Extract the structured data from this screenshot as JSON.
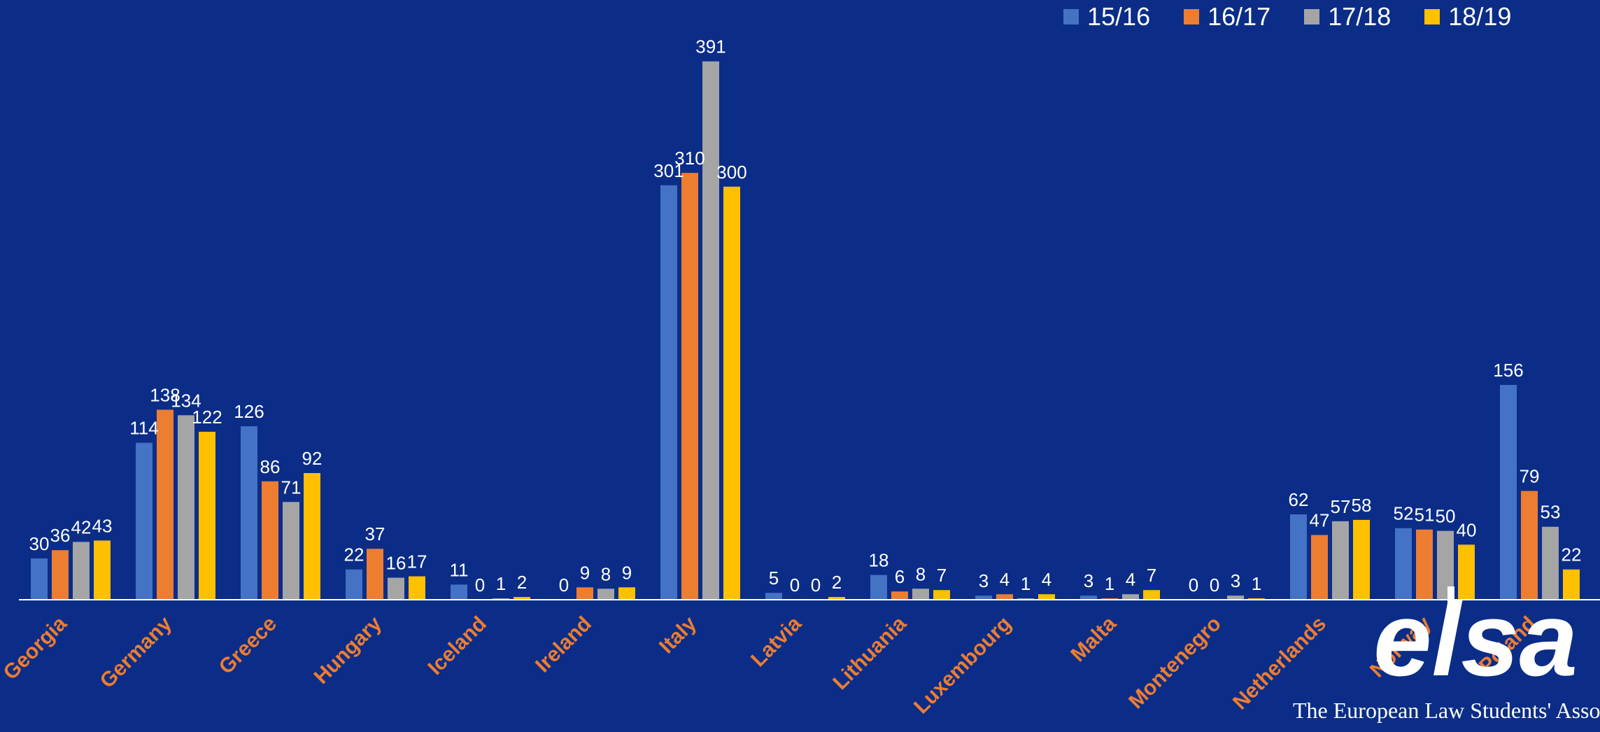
{
  "chart_data": {
    "type": "bar",
    "categories": [
      "Georgia",
      "Germany",
      "Greece",
      "Hungary",
      "Iceland",
      "Ireland",
      "Italy",
      "Latvia",
      "Lithuania",
      "Luxembourg",
      "Malta",
      "Montenegro",
      "Netherlands",
      "Norway",
      "Poland"
    ],
    "series": [
      {
        "name": "15/16",
        "color": "#4472c4",
        "values": [
          30,
          114,
          126,
          22,
          11,
          0,
          301,
          5,
          18,
          3,
          3,
          0,
          62,
          52,
          156
        ]
      },
      {
        "name": "16/17",
        "color": "#ed7d31",
        "values": [
          36,
          138,
          86,
          37,
          0,
          9,
          310,
          0,
          6,
          4,
          1,
          0,
          47,
          51,
          79
        ]
      },
      {
        "name": "17/18",
        "color": "#a5a5a5",
        "values": [
          42,
          134,
          71,
          16,
          1,
          8,
          391,
          0,
          8,
          1,
          4,
          3,
          57,
          50,
          53
        ]
      },
      {
        "name": "18/19",
        "color": "#ffc000",
        "values": [
          43,
          122,
          92,
          17,
          2,
          9,
          300,
          2,
          7,
          4,
          7,
          1,
          58,
          40,
          22
        ]
      }
    ],
    "title": "",
    "xlabel": "",
    "ylabel": "",
    "ylim": [
      0,
      400
    ],
    "grid": false,
    "legend_position": "top-right",
    "category_label_color": "#ed7d31",
    "value_label_color": "#ffffff"
  },
  "branding": {
    "logo_text": "elsa",
    "footer_text": "The European Law Students' Asso"
  },
  "colors": {
    "background": "#0b2d87",
    "axis_line": "#ffffff"
  }
}
